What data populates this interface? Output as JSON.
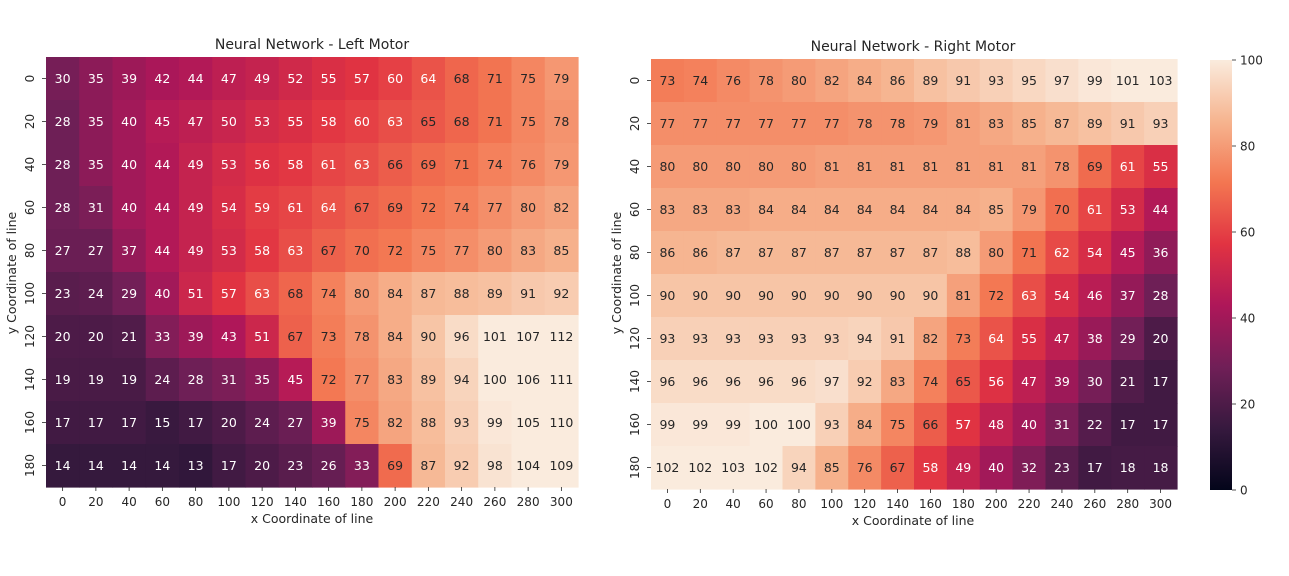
{
  "colormap": {
    "name": "rocket",
    "stops": [
      "#03051a",
      "#36193e",
      "#701f57",
      "#ae1759",
      "#e13342",
      "#f37651",
      "#f6b48f",
      "#faebdd"
    ],
    "vmin": 0,
    "vmax": 100
  },
  "colorbar": {
    "ticks": [
      "0",
      "20",
      "40",
      "60",
      "80",
      "100"
    ],
    "tick_values": [
      0,
      20,
      40,
      60,
      80,
      100
    ]
  },
  "chart_data": [
    {
      "type": "heatmap",
      "title": "Neural Network - Left Motor",
      "xlabel": "x Coordinate of line",
      "ylabel": "y Coordinate of line",
      "x": [
        "0",
        "20",
        "40",
        "60",
        "80",
        "100",
        "120",
        "140",
        "160",
        "180",
        "200",
        "220",
        "240",
        "260",
        "280",
        "300"
      ],
      "y": [
        "0",
        "20",
        "40",
        "60",
        "80",
        "100",
        "120",
        "140",
        "160",
        "180"
      ],
      "values": [
        [
          30,
          35,
          39,
          42,
          44,
          47,
          49,
          52,
          55,
          57,
          60,
          64,
          68,
          71,
          75,
          79
        ],
        [
          28,
          35,
          40,
          45,
          47,
          50,
          53,
          55,
          58,
          60,
          63,
          65,
          68,
          71,
          75,
          78
        ],
        [
          28,
          35,
          40,
          44,
          49,
          53,
          56,
          58,
          61,
          63,
          66,
          69,
          71,
          74,
          76,
          79
        ],
        [
          28,
          31,
          40,
          44,
          49,
          54,
          59,
          61,
          64,
          67,
          69,
          72,
          74,
          77,
          80,
          82
        ],
        [
          27,
          27,
          37,
          44,
          49,
          53,
          58,
          63,
          67,
          70,
          72,
          75,
          77,
          80,
          83,
          85
        ],
        [
          23,
          24,
          29,
          40,
          51,
          57,
          63,
          68,
          74,
          80,
          84,
          87,
          88,
          89,
          91,
          92
        ],
        [
          20,
          20,
          21,
          33,
          39,
          43,
          51,
          67,
          73,
          78,
          84,
          90,
          96,
          101,
          107,
          112
        ],
        [
          19,
          19,
          19,
          24,
          28,
          31,
          35,
          45,
          72,
          77,
          83,
          89,
          94,
          100,
          106,
          111
        ],
        [
          17,
          17,
          17,
          15,
          17,
          20,
          24,
          27,
          39,
          75,
          82,
          88,
          93,
          99,
          105,
          110
        ],
        [
          14,
          14,
          14,
          14,
          13,
          17,
          20,
          23,
          26,
          33,
          69,
          87,
          92,
          98,
          104,
          109
        ]
      ]
    },
    {
      "type": "heatmap",
      "title": "Neural Network - Right Motor",
      "xlabel": "x Coordinate of line",
      "ylabel": "y Coordinate of line",
      "x": [
        "0",
        "20",
        "40",
        "60",
        "80",
        "100",
        "120",
        "140",
        "160",
        "180",
        "200",
        "220",
        "240",
        "260",
        "280",
        "300"
      ],
      "y": [
        "0",
        "20",
        "40",
        "60",
        "80",
        "100",
        "120",
        "140",
        "160",
        "180"
      ],
      "values": [
        [
          73,
          74,
          76,
          78,
          80,
          82,
          84,
          86,
          89,
          91,
          93,
          95,
          97,
          99,
          101,
          103
        ],
        [
          77,
          77,
          77,
          77,
          77,
          77,
          78,
          78,
          79,
          81,
          83,
          85,
          87,
          89,
          91,
          93
        ],
        [
          80,
          80,
          80,
          80,
          80,
          81,
          81,
          81,
          81,
          81,
          81,
          81,
          78,
          69,
          61,
          55
        ],
        [
          83,
          83,
          83,
          84,
          84,
          84,
          84,
          84,
          84,
          84,
          85,
          79,
          70,
          61,
          53,
          44
        ],
        [
          86,
          86,
          87,
          87,
          87,
          87,
          87,
          87,
          87,
          88,
          80,
          71,
          62,
          54,
          45,
          36
        ],
        [
          90,
          90,
          90,
          90,
          90,
          90,
          90,
          90,
          90,
          81,
          72,
          63,
          54,
          46,
          37,
          28
        ],
        [
          93,
          93,
          93,
          93,
          93,
          93,
          94,
          91,
          82,
          73,
          64,
          55,
          47,
          38,
          29,
          20
        ],
        [
          96,
          96,
          96,
          96,
          96,
          97,
          92,
          83,
          74,
          65,
          56,
          47,
          39,
          30,
          21,
          17
        ],
        [
          99,
          99,
          99,
          100,
          100,
          93,
          84,
          75,
          66,
          57,
          48,
          40,
          31,
          22,
          17,
          17
        ],
        [
          102,
          102,
          103,
          102,
          94,
          85,
          76,
          67,
          58,
          49,
          40,
          32,
          23,
          17,
          18,
          18
        ]
      ]
    }
  ]
}
